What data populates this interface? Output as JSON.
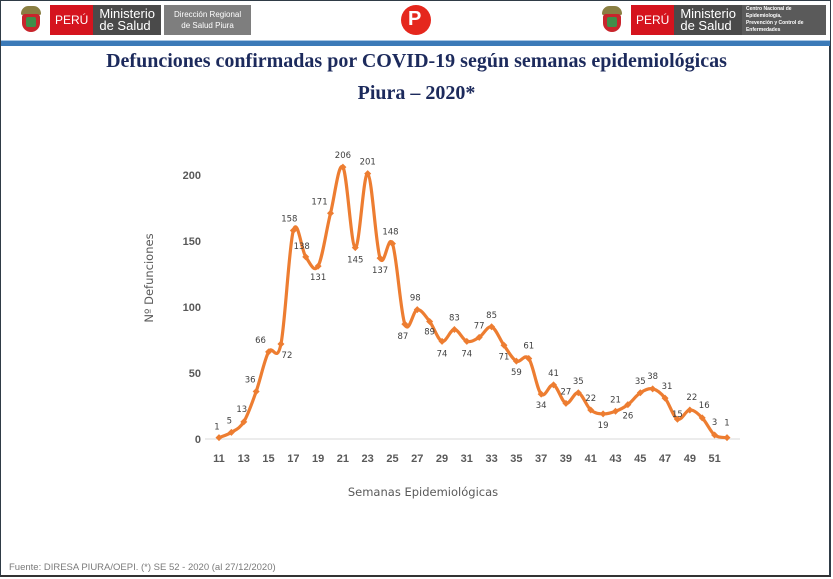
{
  "header": {
    "left_logo": {
      "country": "PERÚ",
      "ministry_line1": "Ministerio",
      "ministry_line2": "de Salud",
      "office_line1": "Dirección Regional",
      "office_line2": "de Salud Piura"
    },
    "center_logo": {
      "glyph": "P"
    },
    "right_logo": {
      "country": "PERÚ",
      "ministry_line1": "Ministerio",
      "ministry_line2": "de Salud",
      "office_line1": "Centro Nacional de Epidemiología,",
      "office_line2": "Prevención y Control de",
      "office_line3": "Enfermedades"
    }
  },
  "colors": {
    "line": "#ed7d31",
    "title": "#1c2a5c",
    "header_rule": "#3b7ab8",
    "peru_red": "#d5141e"
  },
  "footer": {
    "source": "Fuente: DIRESA PIURA/OEPI. (*) SE 52 - 2020 (al 27/12/2020)"
  },
  "chart_data": {
    "type": "line",
    "title": "Defunciones confirmadas por COVID-19 según semanas epidemiológicas",
    "subtitle": "Piura – 2020*",
    "xlabel": "Semanas Epidemiológicas",
    "ylabel": "Nº Defunciones",
    "x": [
      11,
      12,
      13,
      14,
      15,
      16,
      17,
      18,
      19,
      20,
      21,
      22,
      23,
      24,
      25,
      26,
      27,
      28,
      29,
      30,
      31,
      32,
      33,
      34,
      35,
      36,
      37,
      38,
      39,
      40,
      41,
      42,
      43,
      44,
      45,
      46,
      47,
      48,
      49,
      50,
      51,
      52
    ],
    "values": [
      1,
      5,
      13,
      36,
      66,
      72,
      158,
      138,
      131,
      171,
      206,
      145,
      201,
      137,
      148,
      87,
      98,
      89,
      74,
      83,
      74,
      77,
      85,
      71,
      59,
      61,
      34,
      41,
      27,
      35,
      22,
      19,
      21,
      26,
      35,
      38,
      31,
      15,
      22,
      16,
      3,
      1
    ],
    "x_ticks": [
      11,
      13,
      15,
      17,
      19,
      21,
      23,
      25,
      27,
      29,
      31,
      33,
      35,
      37,
      39,
      41,
      43,
      45,
      47,
      49,
      51
    ],
    "y_ticks": [
      0,
      50,
      100,
      150,
      200
    ],
    "ylim": [
      0,
      215
    ],
    "xlim": [
      11,
      52
    ],
    "grid": false,
    "legend": "none",
    "smooth": true,
    "data_labels": true
  }
}
